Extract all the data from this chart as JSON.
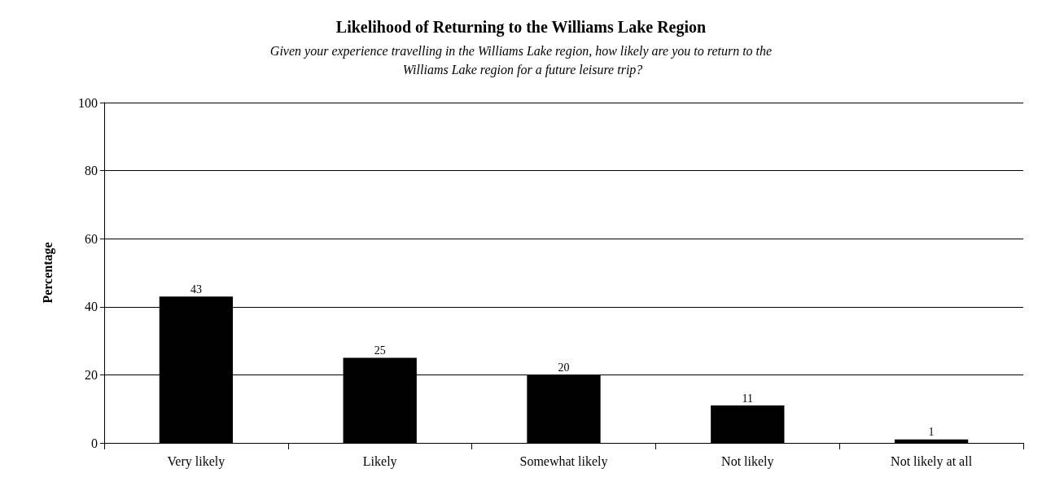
{
  "chart_data": {
    "type": "bar",
    "title": "Likelihood of Returning to the Williams Lake Region",
    "subtitle": "Given your experience travelling in the Williams Lake region, how likely are you to return to the Williams Lake region for a future leisure trip?",
    "ylabel": "Percentage",
    "categories": [
      "Very likely",
      "Likely",
      "Somewhat likely",
      "Not likely",
      "Not likely at all"
    ],
    "values": [
      43,
      25,
      20,
      11,
      1
    ],
    "color": "#000000",
    "ylim": [
      0,
      100
    ],
    "yticks": [
      0,
      20,
      40,
      60,
      80,
      100
    ],
    "grid": "y",
    "data_labels": true
  }
}
